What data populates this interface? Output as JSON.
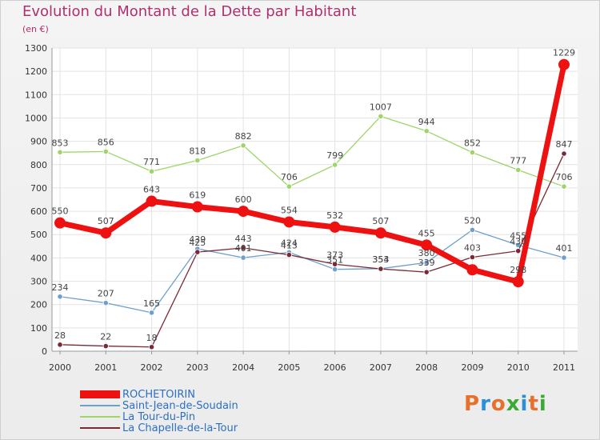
{
  "header": {
    "title": "Evolution du Montant de la Dette par Habitant",
    "subtitle": "(en €)"
  },
  "logo": {
    "text": "Proxiti",
    "colors": [
      "#e8702a",
      "#2a8fd8",
      "#e8702a",
      "#3aaa35",
      "#2a8fd8",
      "#e8702a",
      "#3aaa35"
    ]
  },
  "chart_data": {
    "type": "line",
    "title": "Evolution du Montant de la Dette par Habitant",
    "subtitle": "(en €)",
    "categories": [
      "2000",
      "2001",
      "2002",
      "2003",
      "2004",
      "2005",
      "2006",
      "2007",
      "2008",
      "2009",
      "2010",
      "2011"
    ],
    "ylim": [
      0,
      1300
    ],
    "yticks": [
      0,
      100,
      200,
      300,
      400,
      500,
      600,
      700,
      800,
      900,
      1000,
      1100,
      1200,
      1300
    ],
    "grid": true,
    "legend_position": "bottom-left",
    "series": [
      {
        "name": "ROCHETOIRIN",
        "color": "#ee1111",
        "values": [
          550,
          507,
          643,
          619,
          600,
          554,
          532,
          507,
          455,
          349,
          298,
          1229
        ],
        "labels": [
          "550",
          "507",
          "643",
          "619",
          "600",
          "554",
          "532",
          "507",
          "455",
          "",
          "298",
          "1229"
        ]
      },
      {
        "name": "Saint-Jean-de-Soudain",
        "color": "#6f9fcc",
        "values": [
          234,
          207,
          165,
          439,
          401,
          424,
          351,
          354,
          380,
          520,
          455,
          401
        ],
        "labels": [
          "234",
          "207",
          "165",
          "439",
          "401",
          "424",
          "351",
          "354",
          "380",
          "520",
          "455",
          "401"
        ]
      },
      {
        "name": "La Tour-du-Pin",
        "color": "#9ed46a",
        "values": [
          853,
          856,
          771,
          818,
          882,
          706,
          799,
          1007,
          944,
          852,
          777,
          706
        ],
        "labels": [
          "853",
          "856",
          "771",
          "818",
          "882",
          "706",
          "799",
          "1007",
          "944",
          "852",
          "777",
          "706"
        ]
      },
      {
        "name": "La Chapelle-de-la-Tour",
        "color": "#7a2a35",
        "values": [
          28,
          22,
          18,
          425,
          443,
          413,
          373,
          353,
          339,
          403,
          430,
          847
        ],
        "labels": [
          "28",
          "22",
          "18",
          "425",
          "443",
          "413",
          "373",
          "353",
          "339",
          "403",
          "430",
          "847"
        ]
      }
    ]
  }
}
